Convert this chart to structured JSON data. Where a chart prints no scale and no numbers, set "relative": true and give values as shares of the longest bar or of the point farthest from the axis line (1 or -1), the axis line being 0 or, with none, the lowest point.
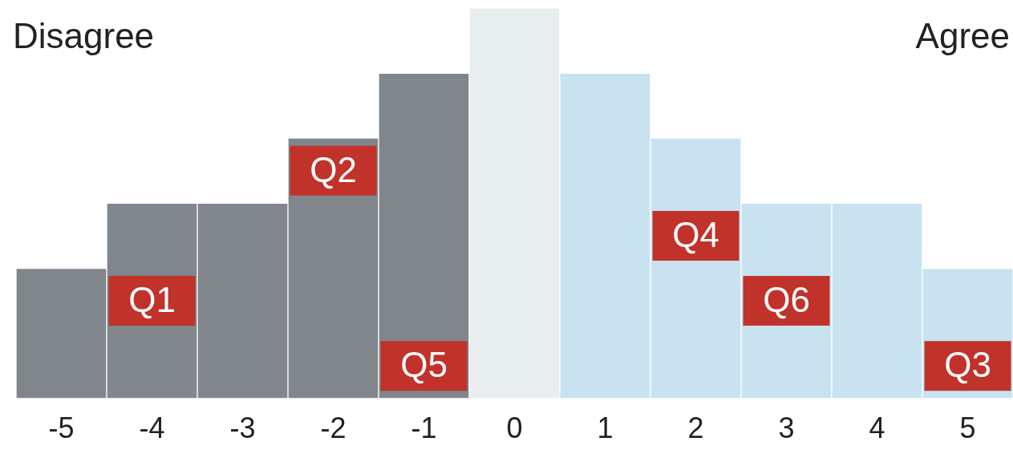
{
  "chart_data": {
    "type": "bar",
    "relative": true,
    "categories": [
      "-5",
      "-4",
      "-3",
      "-2",
      "-1",
      "0",
      "1",
      "2",
      "3",
      "4",
      "5"
    ],
    "values": [
      0.333,
      0.5,
      0.5,
      0.667,
      0.833,
      1,
      0.833,
      0.667,
      0.5,
      0.5,
      0.333
    ],
    "colors": [
      "#80868c",
      "#80868c",
      "#80868c",
      "#80868c",
      "#80868c",
      "#e8edf0",
      "#c8e2f0",
      "#c8e2f0",
      "#c8e2f0",
      "#c8e2f0",
      "#c8e2f0"
    ],
    "annotations": [
      "Disagree",
      "Agree",
      "Q1",
      "Q2",
      "Q3",
      "Q4",
      "Q5",
      "Q6"
    ],
    "legend": false,
    "grid": false
  }
}
